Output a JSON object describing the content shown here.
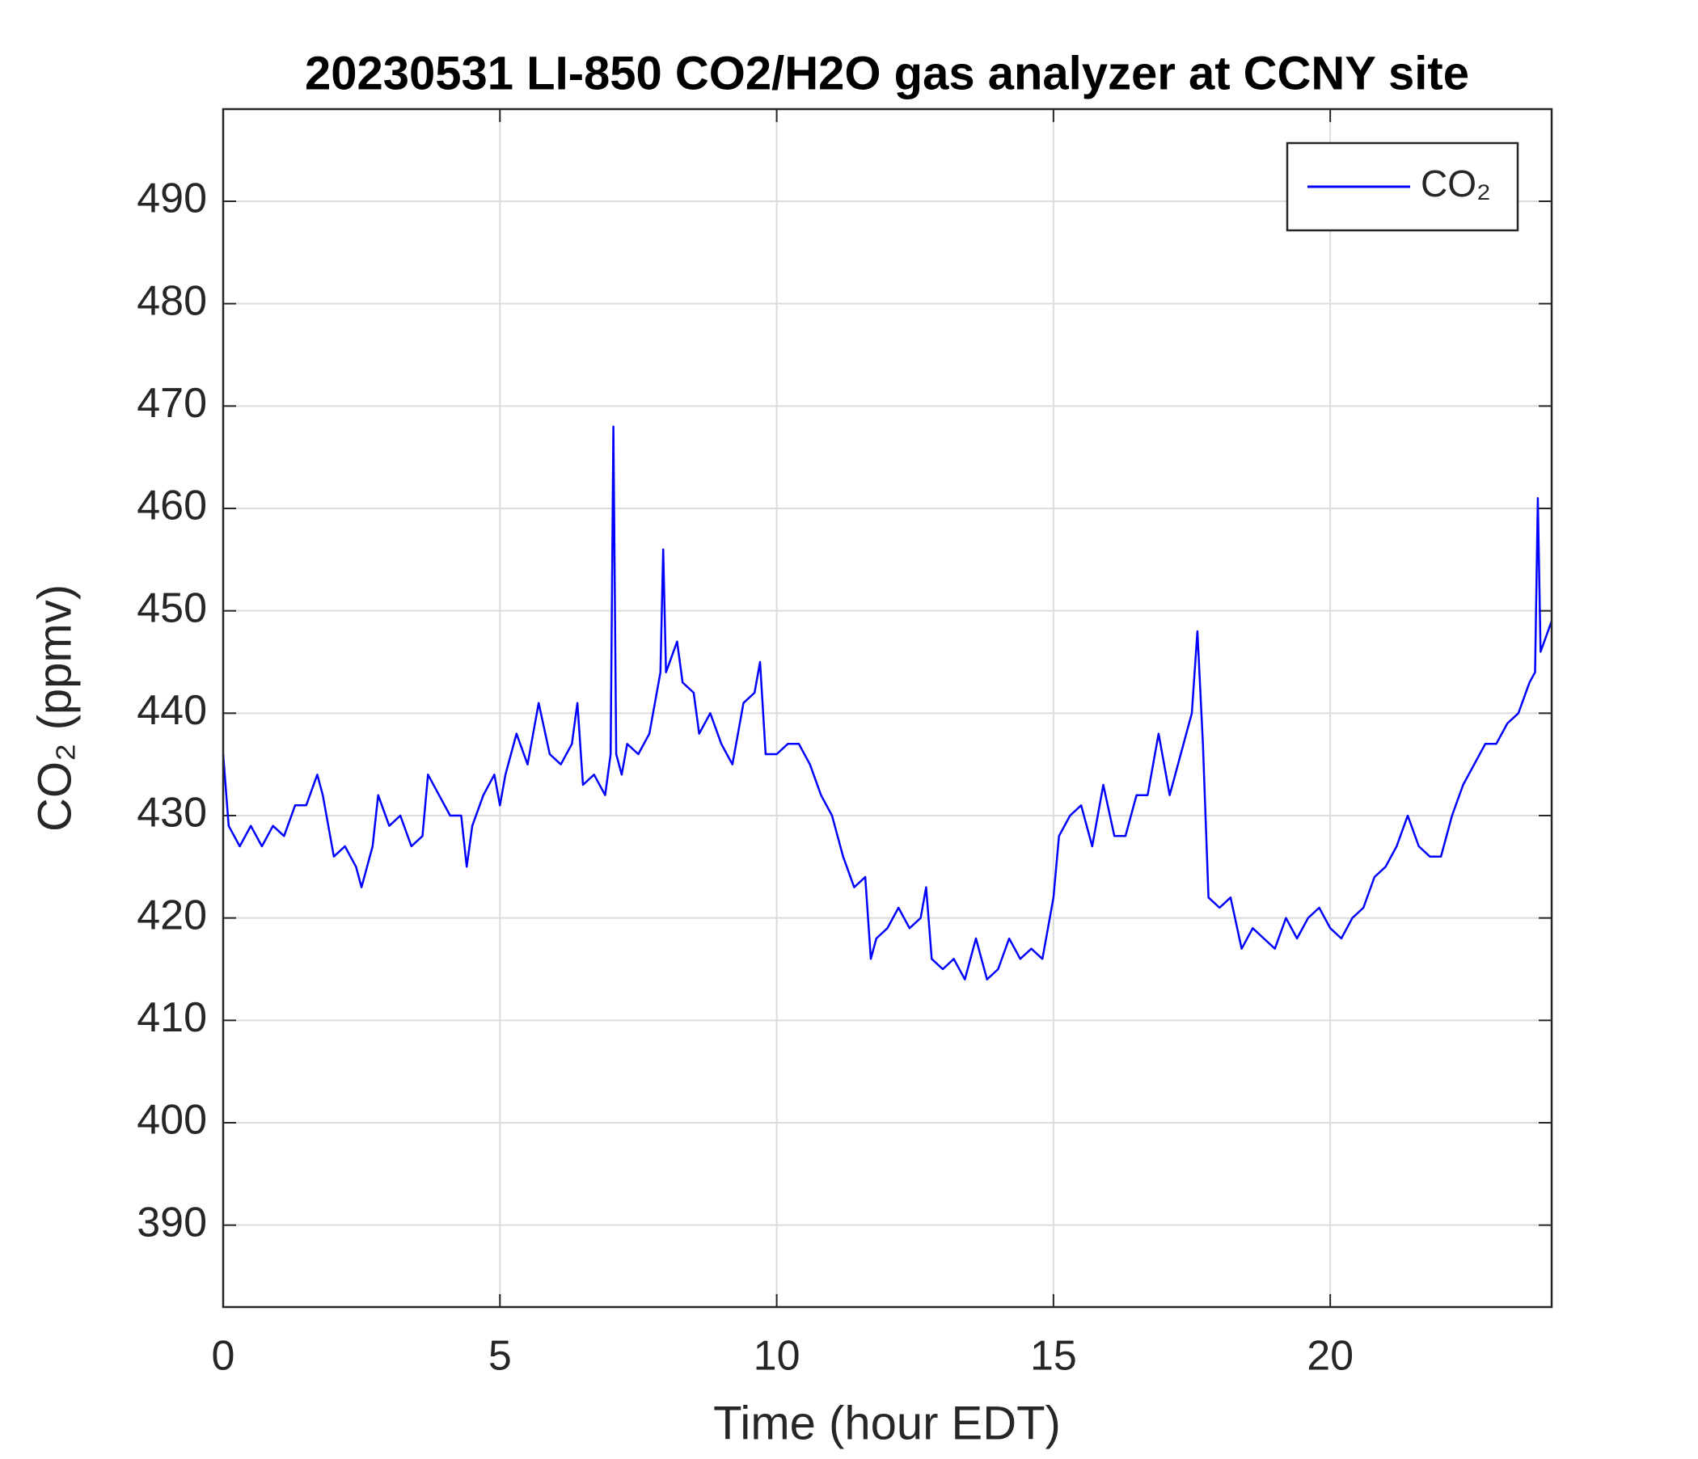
{
  "chart_data": {
    "type": "line",
    "title": "20230531 LI-850 CO2/H2O gas analyzer at CCNY site",
    "x_label": "Time (hour EDT)",
    "y_label": "CO₂ (ppmv)",
    "legend": "northeast",
    "grid": true,
    "xlim": [
      0,
      24
    ],
    "xticks": [
      0,
      5,
      10,
      15,
      20
    ],
    "ylim": [
      382,
      499
    ],
    "yticks": [
      390,
      400,
      410,
      420,
      430,
      440,
      450,
      460,
      470,
      480,
      490
    ],
    "series": [
      {
        "name": "CO₂",
        "color": "#0000ff",
        "x": [
          0,
          0.1,
          0.3,
          0.5,
          0.7,
          0.9,
          1.1,
          1.3,
          1.5,
          1.7,
          1.8,
          2.0,
          2.2,
          2.4,
          2.5,
          2.7,
          2.8,
          3.0,
          3.2,
          3.4,
          3.6,
          3.7,
          3.9,
          4.1,
          4.3,
          4.4,
          4.5,
          4.7,
          4.9,
          5.0,
          5.1,
          5.3,
          5.5,
          5.7,
          5.9,
          6.1,
          6.3,
          6.4,
          6.5,
          6.7,
          6.9,
          7.0,
          7.05,
          7.1,
          7.2,
          7.3,
          7.5,
          7.7,
          7.9,
          7.95,
          8.0,
          8.2,
          8.3,
          8.5,
          8.6,
          8.8,
          9.0,
          9.2,
          9.4,
          9.6,
          9.7,
          9.8,
          10.0,
          10.2,
          10.4,
          10.6,
          10.8,
          11.0,
          11.2,
          11.4,
          11.6,
          11.7,
          11.8,
          12.0,
          12.2,
          12.4,
          12.6,
          12.7,
          12.8,
          13.0,
          13.2,
          13.4,
          13.6,
          13.8,
          14.0,
          14.2,
          14.4,
          14.6,
          14.8,
          15.0,
          15.1,
          15.3,
          15.5,
          15.7,
          15.9,
          16.1,
          16.3,
          16.5,
          16.7,
          16.9,
          17.1,
          17.3,
          17.5,
          17.6,
          17.7,
          17.8,
          18.0,
          18.2,
          18.4,
          18.6,
          18.8,
          19.0,
          19.2,
          19.4,
          19.6,
          19.8,
          20.0,
          20.2,
          20.4,
          20.6,
          20.8,
          21.0,
          21.2,
          21.4,
          21.6,
          21.8,
          22.0,
          22.2,
          22.4,
          22.6,
          22.8,
          23.0,
          23.2,
          23.4,
          23.6,
          23.7,
          23.75,
          23.8,
          24.0
        ],
        "values": [
          436,
          429,
          427,
          429,
          427,
          429,
          428,
          431,
          431,
          434,
          432,
          426,
          427,
          425,
          423,
          427,
          432,
          429,
          430,
          427,
          428,
          434,
          432,
          430,
          430,
          425,
          429,
          432,
          434,
          431,
          434,
          438,
          435,
          441,
          436,
          435,
          437,
          441,
          433,
          434,
          432,
          436,
          468,
          436,
          434,
          437,
          436,
          438,
          444,
          456,
          444,
          447,
          443,
          442,
          438,
          440,
          437,
          435,
          441,
          442,
          445,
          436,
          436,
          437,
          437,
          435,
          432,
          430,
          426,
          423,
          424,
          416,
          418,
          419,
          421,
          419,
          420,
          423,
          416,
          415,
          416,
          414,
          418,
          414,
          415,
          418,
          416,
          417,
          416,
          422,
          428,
          430,
          431,
          427,
          433,
          428,
          428,
          432,
          432,
          438,
          432,
          436,
          440,
          448,
          437,
          422,
          421,
          422,
          417,
          419,
          418,
          417,
          420,
          418,
          420,
          421,
          419,
          418,
          420,
          421,
          424,
          425,
          427,
          430,
          427,
          426,
          426,
          430,
          433,
          435,
          437,
          437,
          439,
          440,
          443,
          444,
          461,
          446,
          449
        ]
      }
    ]
  }
}
